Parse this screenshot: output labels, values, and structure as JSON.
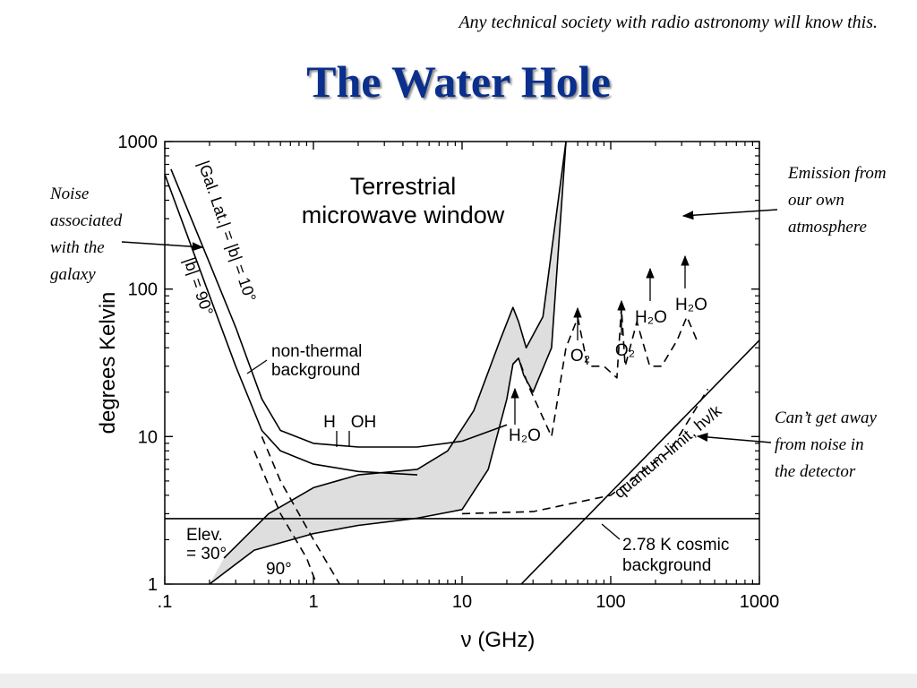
{
  "header": {
    "tagline": "Any technical society with radio astronomy will know this.",
    "title": "The Water Hole"
  },
  "annotations": {
    "galaxy": [
      "Noise",
      "associated",
      "with the",
      "galaxy"
    ],
    "atmosphere": [
      "Emission from",
      "our own",
      "atmosphere"
    ],
    "detector": [
      "Can’t get away",
      "from noise in",
      "the detector"
    ]
  },
  "chart_data": {
    "type": "line",
    "title": "",
    "xlabel": "ν (GHz)",
    "ylabel": "degrees Kelvin",
    "xscale": "log",
    "yscale": "log",
    "xlim": [
      0.1,
      1000
    ],
    "ylim": [
      1,
      1000
    ],
    "x_ticks": [
      ".1",
      "1",
      "10",
      "100",
      "1000"
    ],
    "y_ticks": [
      "1",
      "10",
      "100",
      "1000"
    ],
    "inner_labels": {
      "window_line1": "Terrestrial",
      "window_line2": "microwave window",
      "gal10": "|Gal. Lat.| = |b| = 10°",
      "gal90": "|b| = 90°",
      "nonthermal_line1": "non-thermal",
      "nonthermal_line2": "background",
      "h": "H",
      "oh": "OH",
      "h2o_22": "H₂O",
      "o2_60": "O₂",
      "o2_118": "O₂",
      "h2o_183": "H₂O",
      "h2o_325": "H₂O",
      "quantum": "quantum limit, hν/k",
      "cmb_line1": "2.78 K cosmic",
      "cmb_line2": "background",
      "elev_line1": "Elev.",
      "elev_line2": "= 30°",
      "elev90": "90°"
    },
    "series": [
      {
        "name": "|b| = 10°",
        "style": "solid",
        "x": [
          0.11,
          0.2,
          0.3,
          0.45,
          0.6,
          1,
          2,
          5,
          10,
          20
        ],
        "y": [
          650,
          150,
          55,
          18,
          11,
          9,
          8.5,
          8.5,
          9.3,
          12
        ]
      },
      {
        "name": "|b| = 90°",
        "style": "solid",
        "x": [
          0.1,
          0.2,
          0.3,
          0.45,
          0.6,
          1,
          2,
          5
        ],
        "y": [
          600,
          90,
          30,
          11,
          8,
          6.5,
          5.8,
          5.5
        ]
      },
      {
        "name": "galactic-only-10",
        "style": "dashed",
        "x": [
          0.45,
          0.6,
          1,
          1.5
        ],
        "y": [
          10,
          5,
          2,
          1
        ]
      },
      {
        "name": "galactic-only-90",
        "style": "dashed",
        "x": [
          0.4,
          0.6,
          0.9,
          1.05
        ],
        "y": [
          8,
          3,
          1.5,
          1
        ]
      },
      {
        "name": "atmosphere 90°",
        "style": "solid",
        "x": [
          0.2,
          0.4,
          1,
          2,
          5,
          10,
          15,
          20,
          22,
          24,
          26,
          30,
          40,
          50
        ],
        "y": [
          1,
          1.7,
          2.2,
          2.5,
          2.8,
          3.2,
          6,
          18,
          31,
          34,
          26,
          20,
          40,
          1000
        ]
      },
      {
        "name": "atmosphere 30°",
        "style": "solid",
        "x": [
          0.25,
          0.5,
          1,
          2,
          5,
          8,
          12,
          18,
          22,
          24,
          27,
          35,
          50
        ],
        "y": [
          1.5,
          3,
          4.5,
          5.5,
          6,
          8,
          15,
          45,
          75,
          60,
          40,
          65,
          1000
        ]
      },
      {
        "name": "atmosphere dashed",
        "style": "dashed",
        "x": [
          22,
          24,
          28,
          40,
          50,
          60,
          70,
          90,
          110,
          118,
          125,
          150,
          183,
          220,
          280,
          325,
          380
        ],
        "y": [
          31,
          34,
          22,
          10,
          40,
          64,
          30,
          30,
          25,
          75,
          30,
          60,
          30,
          30,
          45,
          65,
          45
        ]
      },
      {
        "name": "quantum limit, hν/k",
        "style": "dashed",
        "x": [
          10,
          30,
          100,
          250,
          450
        ],
        "y": [
          3,
          3.1,
          4,
          8,
          21
        ]
      },
      {
        "name": "quantum line",
        "style": "solid",
        "x": [
          25,
          1000
        ],
        "y": [
          1,
          45
        ]
      },
      {
        "name": "2.78 K cosmic background",
        "style": "solid",
        "x": [
          0.1,
          1000
        ],
        "y": [
          2.78,
          2.78
        ]
      }
    ]
  }
}
